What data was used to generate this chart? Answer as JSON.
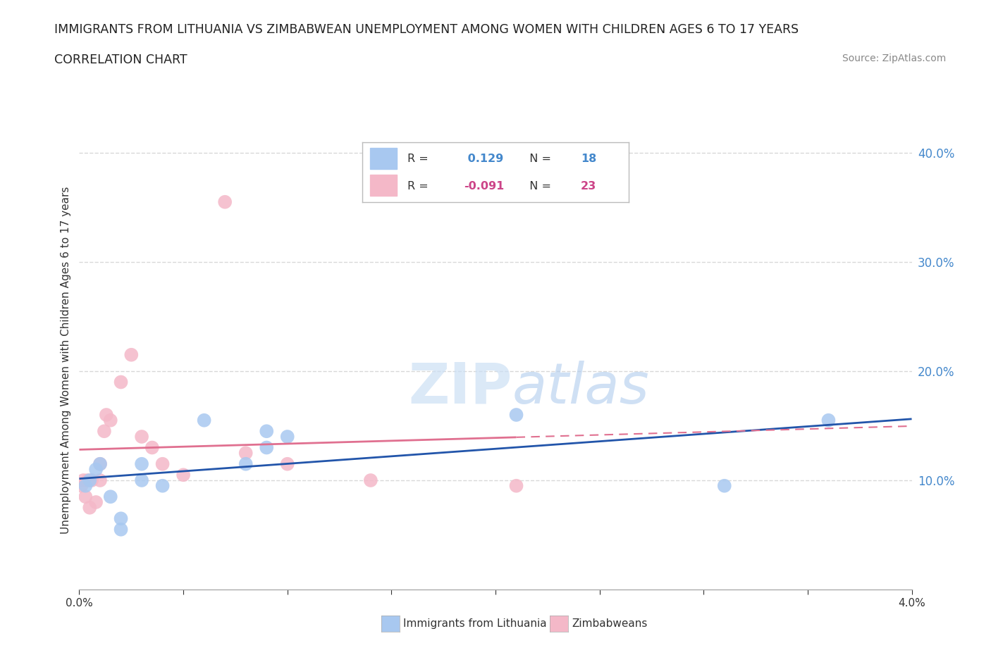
{
  "title": "IMMIGRANTS FROM LITHUANIA VS ZIMBABWEAN UNEMPLOYMENT AMONG WOMEN WITH CHILDREN AGES 6 TO 17 YEARS",
  "subtitle": "CORRELATION CHART",
  "source": "Source: ZipAtlas.com",
  "ylabel": "Unemployment Among Women with Children Ages 6 to 17 years",
  "legend_label1": "Immigrants from Lithuania",
  "legend_label2": "Zimbabweans",
  "R1": 0.129,
  "N1": 18,
  "R2": -0.091,
  "N2": 23,
  "xlim": [
    0.0,
    0.04
  ],
  "ylim": [
    0.0,
    0.42
  ],
  "yticks": [
    0.1,
    0.2,
    0.3,
    0.4
  ],
  "xticks": [
    0.0,
    0.005,
    0.01,
    0.015,
    0.02,
    0.025,
    0.03,
    0.035,
    0.04
  ],
  "color_blue": "#a8c8f0",
  "color_pink": "#f4b8c8",
  "line_blue": "#2255aa",
  "line_pink": "#e07090",
  "blue_scatter_x": [
    0.0003,
    0.0005,
    0.0008,
    0.001,
    0.0015,
    0.002,
    0.002,
    0.003,
    0.003,
    0.004,
    0.006,
    0.008,
    0.009,
    0.009,
    0.01,
    0.021,
    0.031,
    0.036
  ],
  "blue_scatter_y": [
    0.095,
    0.1,
    0.11,
    0.115,
    0.085,
    0.065,
    0.055,
    0.1,
    0.115,
    0.095,
    0.155,
    0.115,
    0.13,
    0.145,
    0.14,
    0.16,
    0.095,
    0.155
  ],
  "pink_scatter_x": [
    0.0001,
    0.0002,
    0.0003,
    0.0004,
    0.0005,
    0.0006,
    0.0008,
    0.001,
    0.001,
    0.0012,
    0.0013,
    0.0015,
    0.002,
    0.0025,
    0.003,
    0.0035,
    0.004,
    0.005,
    0.007,
    0.008,
    0.01,
    0.014,
    0.021
  ],
  "pink_scatter_y": [
    0.095,
    0.1,
    0.085,
    0.1,
    0.075,
    0.1,
    0.08,
    0.1,
    0.115,
    0.145,
    0.16,
    0.155,
    0.19,
    0.215,
    0.14,
    0.13,
    0.115,
    0.105,
    0.355,
    0.125,
    0.115,
    0.1,
    0.095
  ],
  "background_color": "#ffffff",
  "grid_color": "#d8d8d8"
}
